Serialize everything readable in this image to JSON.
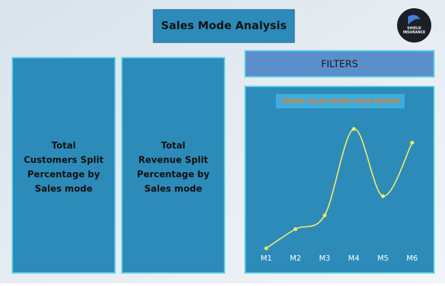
{
  "header": {
    "title": "Sales Mode Analysis"
  },
  "logo": {
    "line1": "SHIELD",
    "line2": "INSURANCE"
  },
  "panels": [
    {
      "lines": [
        "Total",
        "Customers Split",
        "Percentage by",
        "Sales mode"
      ]
    },
    {
      "lines": [
        "Total",
        "Revenue Split",
        "Percentage by",
        "Sales mode"
      ]
    }
  ],
  "filters": {
    "label": "FILTERS"
  },
  "chart_data": {
    "type": "line",
    "title": "TREND SALES MODE OVER MONTH",
    "categories": [
      "M1",
      "M2",
      "M3",
      "M4",
      "M5",
      "M6"
    ],
    "series": [
      {
        "color": "#f2e86a",
        "values": [
          4,
          18,
          28,
          91,
          42,
          81
        ]
      }
    ],
    "ylim": [
      0,
      100
    ]
  }
}
